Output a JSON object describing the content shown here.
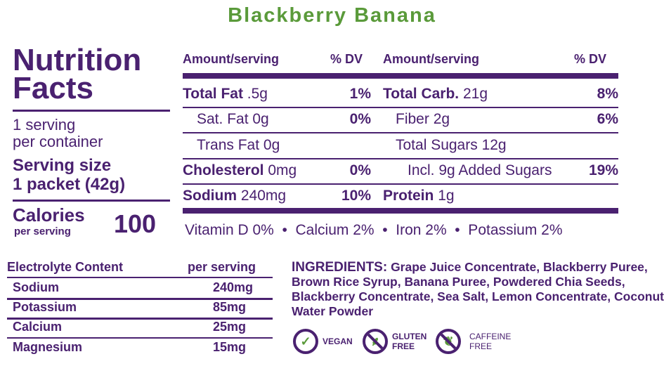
{
  "product_name": "Blackberry Banana",
  "colors": {
    "primary": "#4a2170",
    "accent": "#5a9a3a"
  },
  "panel": {
    "title_line1": "Nutrition",
    "title_line2": "Facts",
    "servings_line1": "1 serving",
    "servings_line2": "per container",
    "serving_size_label": "Serving size",
    "serving_size_value": "1 packet (42g)",
    "calories_label": "Calories",
    "calories_sub": "per serving",
    "calories_value": "100"
  },
  "table": {
    "header": {
      "amount": "Amount/serving",
      "dv": "% DV",
      "amount2": "Amount/serving",
      "dv2": "% DV"
    },
    "left": [
      {
        "label": "Total Fat",
        "value": ".5g",
        "dv": "1%",
        "bold": true
      },
      {
        "label": "Sat. Fat",
        "value": "0g",
        "dv": "0%",
        "bold": false
      },
      {
        "label": "Trans Fat",
        "value": "0g",
        "dv": "",
        "bold": false
      },
      {
        "label": "Cholesterol",
        "value": "0mg",
        "dv": "0%",
        "bold": true
      },
      {
        "label": "Sodium",
        "value": "240mg",
        "dv": "10%",
        "bold": true
      }
    ],
    "right": [
      {
        "label": "Total Carb.",
        "value": "21g",
        "dv": "8%",
        "bold": true
      },
      {
        "label": "Fiber",
        "value": "2g",
        "dv": "6%",
        "bold": false
      },
      {
        "label": "Total Sugars",
        "value": "12g",
        "dv": "",
        "bold": false
      },
      {
        "label": "Incl. 9g Added Sugars",
        "value": "",
        "dv": "19%",
        "bold": false
      },
      {
        "label": "Protein",
        "value": "1g",
        "dv": "",
        "bold": true
      }
    ],
    "vitamins": "Vitamin D 0%  •  Calcium 2%  •  Iron 2%  •  Potassium 2%"
  },
  "electrolytes": {
    "header": "Electrolyte Content",
    "header_value": "per serving",
    "rows": [
      {
        "name": "Sodium",
        "value": "240mg"
      },
      {
        "name": "Potassium",
        "value": "85mg"
      },
      {
        "name": "Calcium",
        "value": "25mg"
      },
      {
        "name": "Magnesium",
        "value": "15mg"
      }
    ]
  },
  "ingredients": {
    "label": "INGREDIENTS:",
    "text": "Grape Juice Concentrate, Blackberry Puree, Brown Rice Syrup, Banana Puree, Powdered Chia Seeds, Blackberry Concentrate, Sea Salt, Lemon Concentrate, Coconut Water Powder"
  },
  "badges": [
    {
      "label": "VEGAN",
      "icon": "check-leaf-icon"
    },
    {
      "label": "GLUTEN FREE",
      "icon": "no-wheat-icon"
    },
    {
      "label": "CAFFEINE FREE",
      "icon": "no-leaf-icon"
    }
  ]
}
